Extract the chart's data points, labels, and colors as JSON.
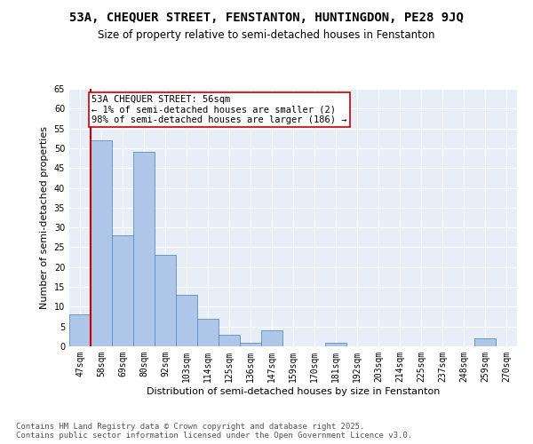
{
  "title": "53A, CHEQUER STREET, FENSTANTON, HUNTINGDON, PE28 9JQ",
  "subtitle": "Size of property relative to semi-detached houses in Fenstanton",
  "xlabel": "Distribution of semi-detached houses by size in Fenstanton",
  "ylabel": "Number of semi-detached properties",
  "categories": [
    "47sqm",
    "58sqm",
    "69sqm",
    "80sqm",
    "92sqm",
    "103sqm",
    "114sqm",
    "125sqm",
    "136sqm",
    "147sqm",
    "159sqm",
    "170sqm",
    "181sqm",
    "192sqm",
    "203sqm",
    "214sqm",
    "225sqm",
    "237sqm",
    "248sqm",
    "259sqm",
    "270sqm"
  ],
  "values": [
    8,
    52,
    28,
    49,
    23,
    13,
    7,
    3,
    1,
    4,
    0,
    0,
    1,
    0,
    0,
    0,
    0,
    0,
    0,
    2,
    0
  ],
  "bar_color": "#aec6e8",
  "bar_edge_color": "#5a8fc0",
  "highlight_color": "#cc0000",
  "annotation_text": "53A CHEQUER STREET: 56sqm\n← 1% of semi-detached houses are smaller (2)\n98% of semi-detached houses are larger (186) →",
  "annotation_box_color": "#cc0000",
  "ylim": [
    0,
    65
  ],
  "yticks": [
    0,
    5,
    10,
    15,
    20,
    25,
    30,
    35,
    40,
    45,
    50,
    55,
    60,
    65
  ],
  "background_color": "#e8eef8",
  "footer_text": "Contains HM Land Registry data © Crown copyright and database right 2025.\nContains public sector information licensed under the Open Government Licence v3.0.",
  "title_fontsize": 10,
  "subtitle_fontsize": 8.5,
  "axis_label_fontsize": 8,
  "tick_fontsize": 7,
  "footer_fontsize": 6.5,
  "annotation_fontsize": 7.5
}
